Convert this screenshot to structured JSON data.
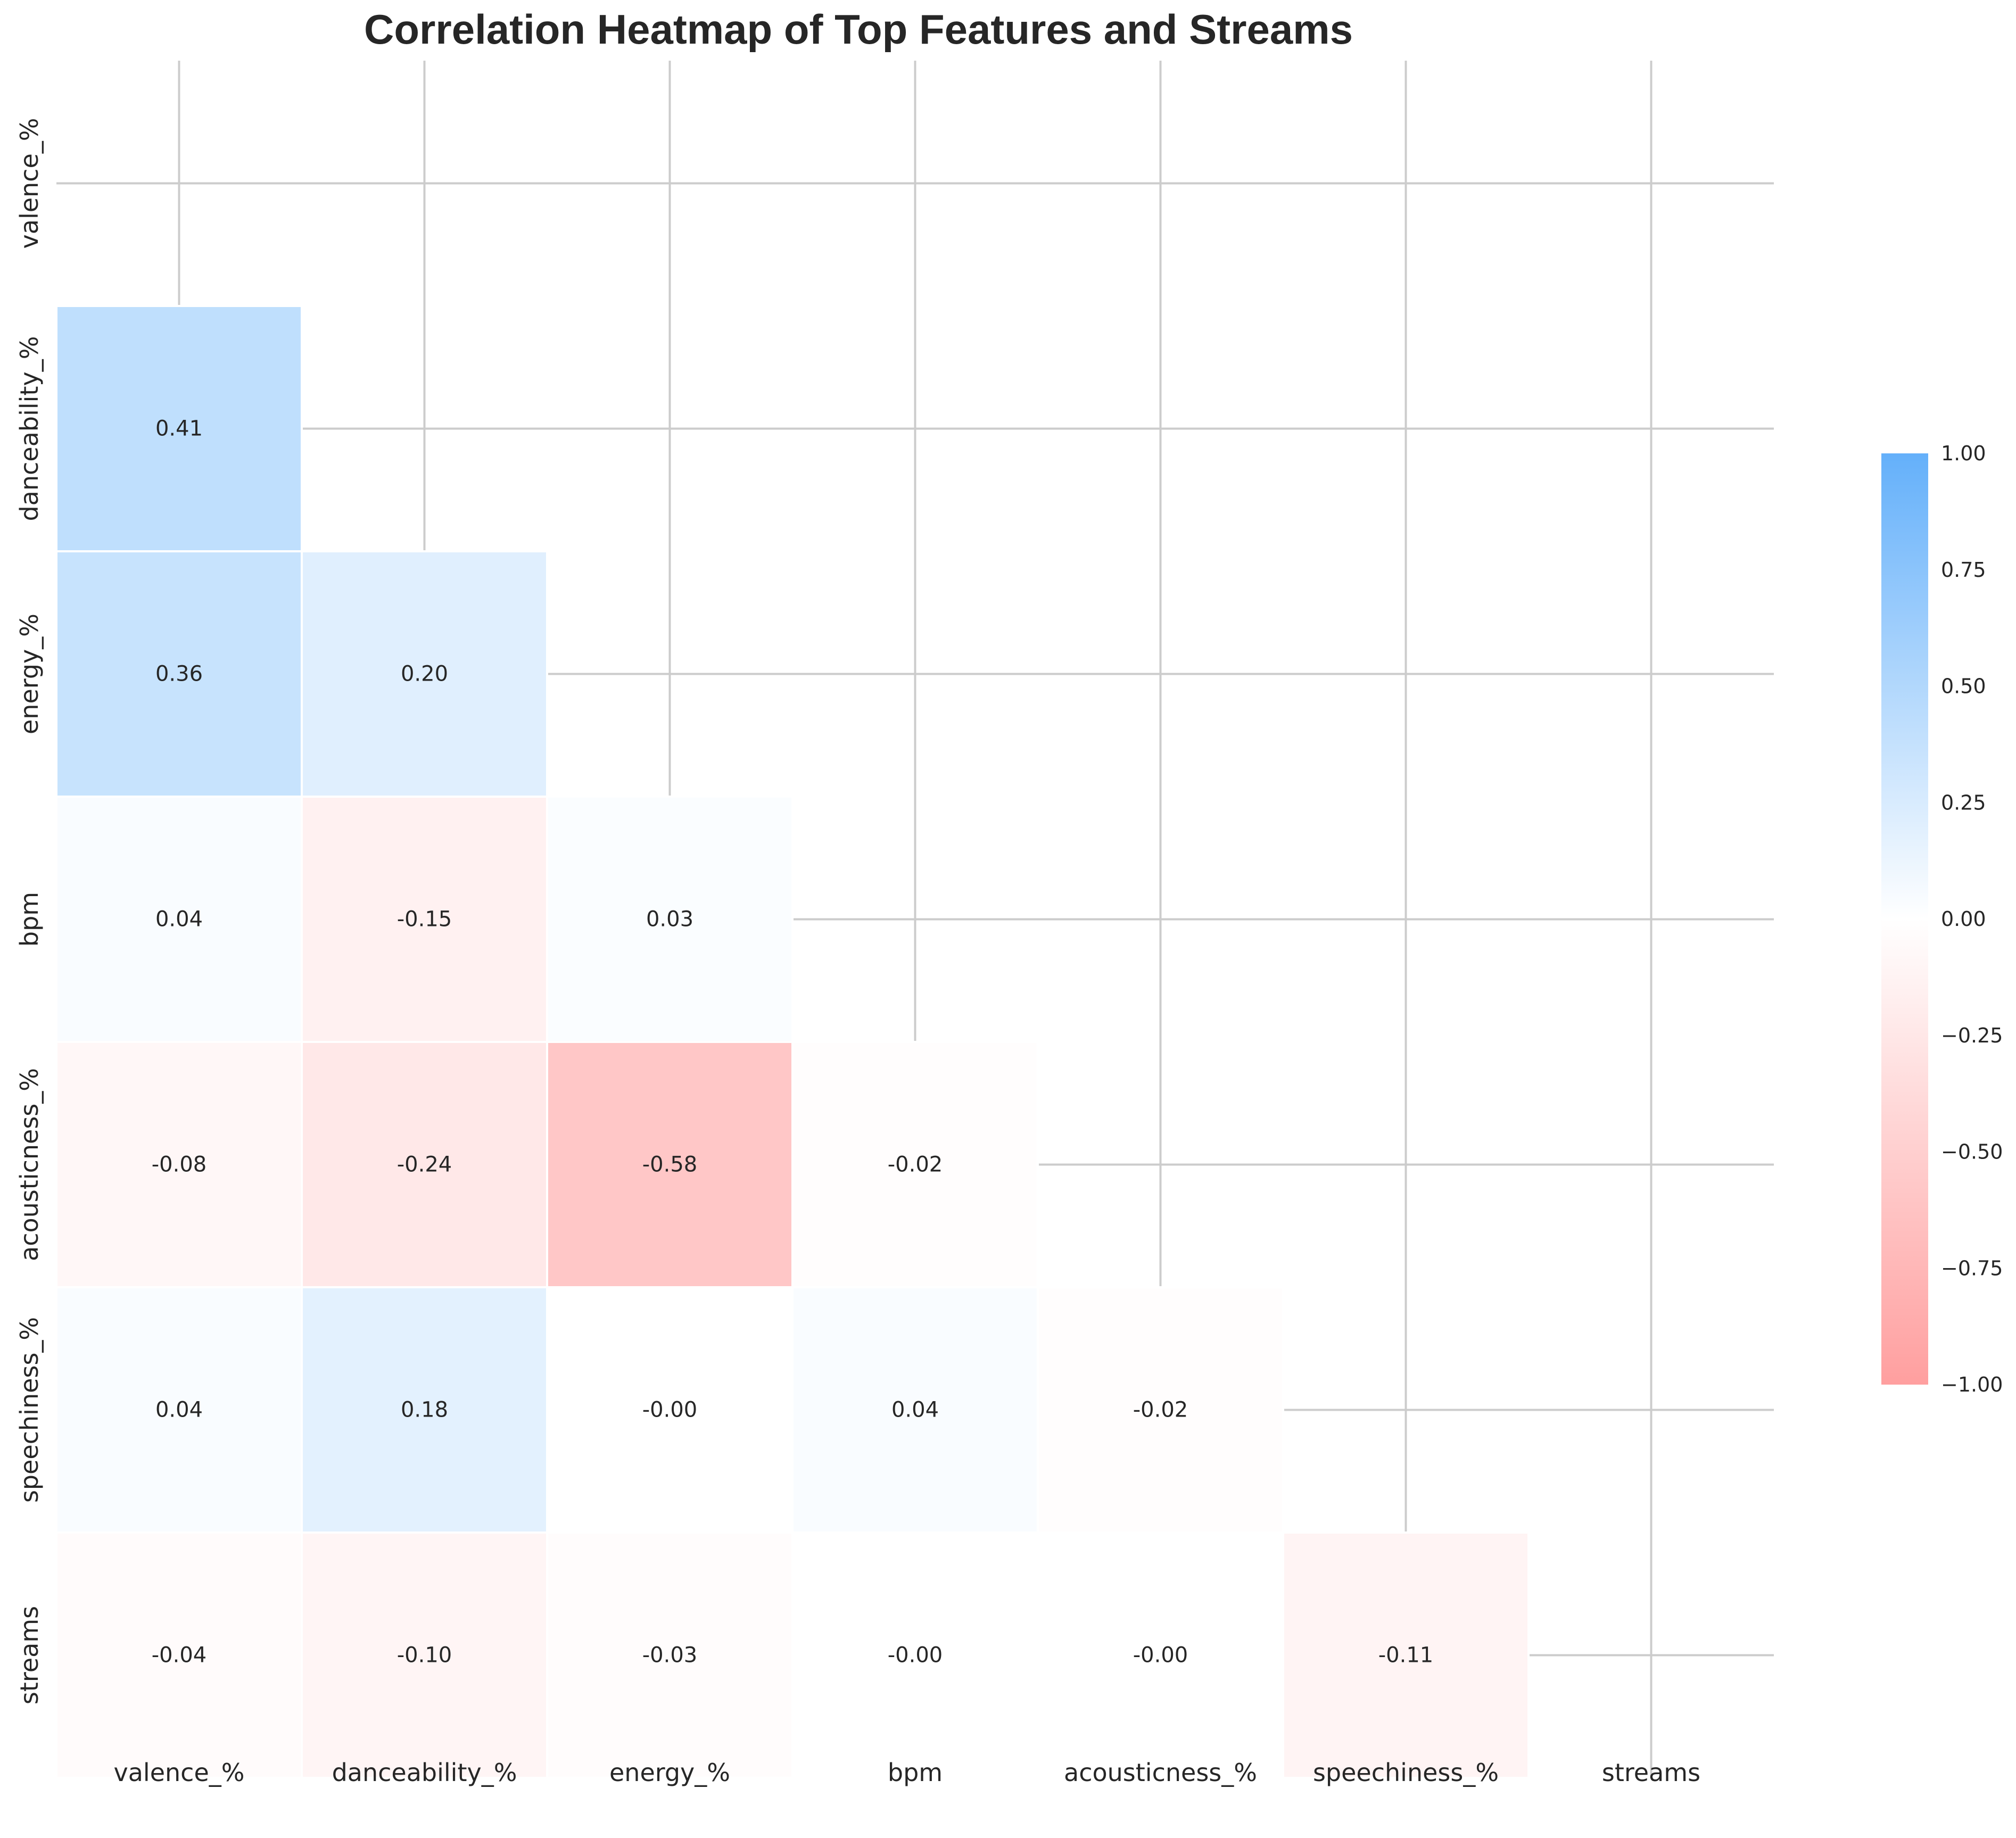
{
  "chart_data": {
    "type": "heatmap",
    "title": "Correlation Heatmap of Top Features and Streams",
    "variables": [
      "valence_%",
      "danceability_%",
      "energy_%",
      "bpm",
      "acousticness_%",
      "speechiness_%",
      "streams"
    ],
    "mask": "upper-triangle-including-diagonal",
    "cells": [
      {
        "row": 1,
        "col": 0,
        "value": 0.41,
        "label": "0.41"
      },
      {
        "row": 2,
        "col": 0,
        "value": 0.36,
        "label": "0.36"
      },
      {
        "row": 2,
        "col": 1,
        "value": 0.2,
        "label": "0.20"
      },
      {
        "row": 3,
        "col": 0,
        "value": 0.04,
        "label": "0.04"
      },
      {
        "row": 3,
        "col": 1,
        "value": -0.15,
        "label": "-0.15"
      },
      {
        "row": 3,
        "col": 2,
        "value": 0.03,
        "label": "0.03"
      },
      {
        "row": 4,
        "col": 0,
        "value": -0.08,
        "label": "-0.08"
      },
      {
        "row": 4,
        "col": 1,
        "value": -0.24,
        "label": "-0.24"
      },
      {
        "row": 4,
        "col": 2,
        "value": -0.58,
        "label": "-0.58"
      },
      {
        "row": 4,
        "col": 3,
        "value": -0.02,
        "label": "-0.02"
      },
      {
        "row": 5,
        "col": 0,
        "value": 0.04,
        "label": "0.04"
      },
      {
        "row": 5,
        "col": 1,
        "value": 0.18,
        "label": "0.18"
      },
      {
        "row": 5,
        "col": 2,
        "value": -0.004,
        "label": "-0.00"
      },
      {
        "row": 5,
        "col": 3,
        "value": 0.04,
        "label": "0.04"
      },
      {
        "row": 5,
        "col": 4,
        "value": -0.02,
        "label": "-0.02"
      },
      {
        "row": 6,
        "col": 0,
        "value": -0.04,
        "label": "-0.04"
      },
      {
        "row": 6,
        "col": 1,
        "value": -0.1,
        "label": "-0.10"
      },
      {
        "row": 6,
        "col": 2,
        "value": -0.03,
        "label": "-0.03"
      },
      {
        "row": 6,
        "col": 3,
        "value": -0.002,
        "label": "-0.00"
      },
      {
        "row": 6,
        "col": 4,
        "value": -0.004,
        "label": "-0.00"
      },
      {
        "row": 6,
        "col": 5,
        "value": -0.11,
        "label": "-0.11"
      }
    ],
    "colorbar": {
      "range": [
        -1.0,
        1.0
      ],
      "ticks": [
        "1.00",
        "0.75",
        "0.50",
        "0.25",
        "0.00",
        "−0.25",
        "−0.50",
        "−0.75",
        "−1.00"
      ],
      "colors": {
        "max": "#64b0fa",
        "mid": "#ffffff",
        "min": "#ff9f9f"
      }
    },
    "grid": true
  }
}
